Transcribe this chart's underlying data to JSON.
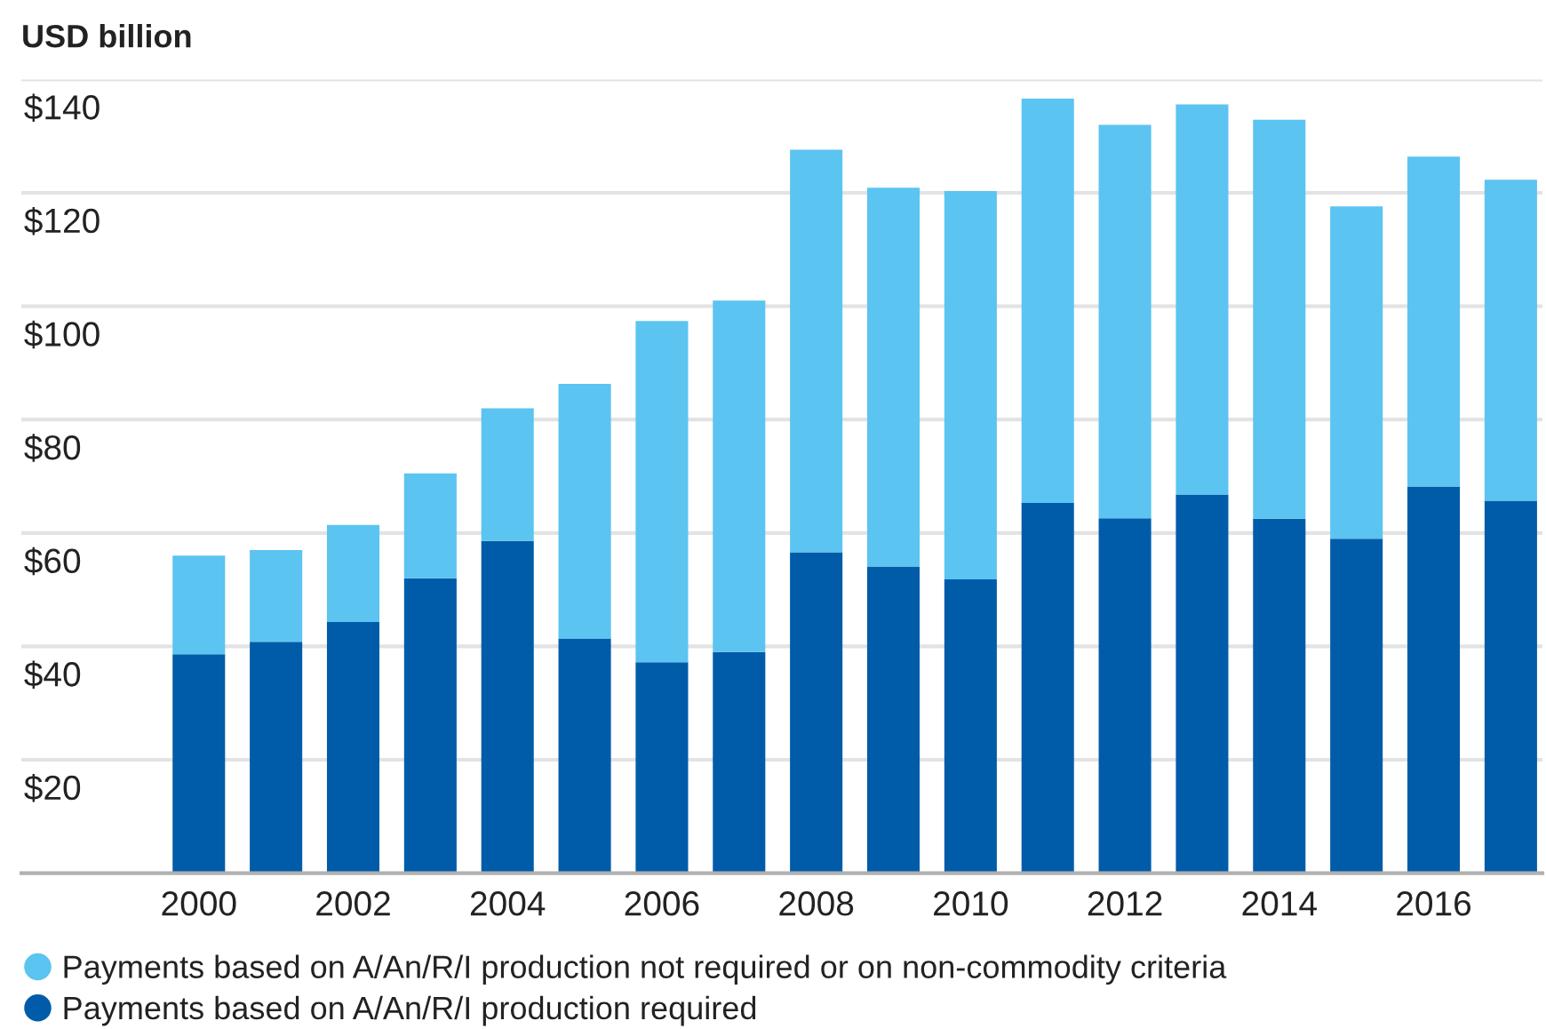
{
  "chart_data": {
    "type": "bar",
    "ylabel": "USD billion",
    "stacked": true,
    "categories": [
      "2000",
      null,
      "2002",
      null,
      "2004",
      null,
      "2006",
      null,
      "2008",
      null,
      "2010",
      null,
      "2012",
      null,
      "2014",
      null,
      "2016",
      null
    ],
    "series": [
      {
        "name": "Payments based on A/An/R/I production required",
        "color": "#005ca9",
        "values": [
          38.6,
          40.8,
          44.3,
          52.0,
          58.6,
          41.4,
          37.2,
          39.0,
          56.6,
          54.1,
          51.8,
          65.3,
          62.6,
          66.8,
          62.5,
          59.0,
          68.2,
          65.7
        ]
      },
      {
        "name": "Payments based on A/An/R/I production not required or on non-commodity criteria",
        "color": "#5bc4f1",
        "values": [
          17.4,
          16.2,
          17.1,
          18.5,
          23.4,
          44.9,
          60.2,
          62.0,
          71.0,
          66.8,
          68.5,
          71.3,
          69.4,
          68.8,
          70.4,
          58.6,
          58.2,
          56.6
        ]
      }
    ],
    "ylim": [
      0,
      140
    ],
    "yticks": [
      {
        "value": 20,
        "label": "$20"
      },
      {
        "value": 40,
        "label": "$40"
      },
      {
        "value": 60,
        "label": "$60"
      },
      {
        "value": 80,
        "label": "$80"
      },
      {
        "value": 100,
        "label": "$100"
      },
      {
        "value": 120,
        "label": "$120"
      },
      {
        "value": 140,
        "label": "$140"
      }
    ],
    "grid": "y",
    "legend": "bottom"
  }
}
